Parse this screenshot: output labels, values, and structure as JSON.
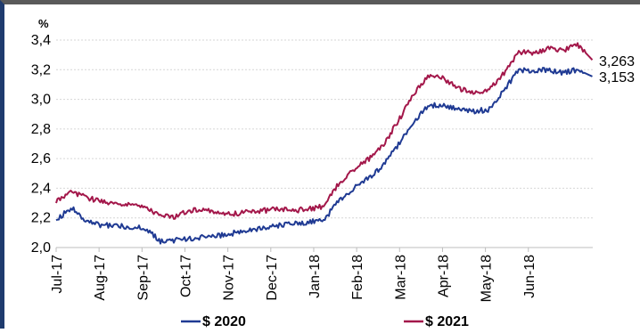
{
  "chart_data": {
    "type": "line",
    "unit_label": "%",
    "x": [
      "Jul-17",
      "Aug-17",
      "Sep-17",
      "Oct-17",
      "Nov-17",
      "Dec-17",
      "Jan-18",
      "Feb-18",
      "Mar-18",
      "Apr-18",
      "May-18",
      "Jun-18"
    ],
    "ylim": [
      2.0,
      3.4
    ],
    "yticks": [
      "2,0",
      "2,2",
      "2,4",
      "2,6",
      "2,8",
      "3,0",
      "3,2",
      "3,4"
    ],
    "grid": true,
    "legend_position": "bottom",
    "series": [
      {
        "name": "$ 2020",
        "color": "#1f3a93",
        "end_label": "3,153",
        "points": [
          [
            "Jul-17",
            2.18
          ],
          [
            "Jul-17 mid",
            2.27
          ],
          [
            "Jul-17 late",
            2.18
          ],
          [
            "Aug-17",
            2.15
          ],
          [
            "Aug-17 mid",
            2.15
          ],
          [
            "Aug-17 late",
            2.14
          ],
          [
            "Sep-17",
            2.13
          ],
          [
            "Sep-17 mid",
            2.04
          ],
          [
            "Sep-17 late",
            2.05
          ],
          [
            "Oct-17",
            2.06
          ],
          [
            "Oct-17 mid",
            2.07
          ],
          [
            "Oct-17 late",
            2.08
          ],
          [
            "Nov-17",
            2.1
          ],
          [
            "Nov-17 mid",
            2.12
          ],
          [
            "Nov-17 late",
            2.13
          ],
          [
            "Dec-17",
            2.15
          ],
          [
            "Dec-17 mid",
            2.16
          ],
          [
            "Dec-17 late",
            2.17
          ],
          [
            "Jan-18",
            2.19
          ],
          [
            "Jan-18 mid",
            2.32
          ],
          [
            "Jan-18 late",
            2.4
          ],
          [
            "Feb-18",
            2.47
          ],
          [
            "Feb-18 mid",
            2.56
          ],
          [
            "Feb-18 late",
            2.7
          ],
          [
            "Mar-18",
            2.85
          ],
          [
            "Mar-18 mid",
            2.96
          ],
          [
            "Mar-18 late",
            2.96
          ],
          [
            "Apr-18",
            2.93
          ],
          [
            "Apr-18 mid",
            2.92
          ],
          [
            "Apr-18 late",
            2.93
          ],
          [
            "May-18",
            3.05
          ],
          [
            "May-18 mid",
            3.2
          ],
          [
            "May-18 late",
            3.19
          ],
          [
            "Jun-18",
            3.2
          ],
          [
            "Jun-18 mid",
            3.18
          ],
          [
            "Jun-18 late",
            3.2
          ],
          [
            "end",
            3.153
          ]
        ]
      },
      {
        "name": "$ 2021",
        "color": "#a3174a",
        "end_label": "3,263",
        "points": [
          [
            "Jul-17",
            2.31
          ],
          [
            "Jul-17 mid",
            2.37
          ],
          [
            "Jul-17 late",
            2.34
          ],
          [
            "Aug-17",
            2.31
          ],
          [
            "Aug-17 mid",
            2.3
          ],
          [
            "Aug-17 late",
            2.29
          ],
          [
            "Sep-17",
            2.27
          ],
          [
            "Sep-17 mid",
            2.21
          ],
          [
            "Sep-17 late",
            2.21
          ],
          [
            "Oct-17",
            2.25
          ],
          [
            "Oct-17 mid",
            2.25
          ],
          [
            "Oct-17 late",
            2.23
          ],
          [
            "Nov-17",
            2.23
          ],
          [
            "Nov-17 mid",
            2.24
          ],
          [
            "Nov-17 late",
            2.25
          ],
          [
            "Dec-17",
            2.26
          ],
          [
            "Dec-17 mid",
            2.25
          ],
          [
            "Dec-17 late",
            2.26
          ],
          [
            "Jan-18",
            2.28
          ],
          [
            "Jan-18 mid",
            2.44
          ],
          [
            "Jan-18 late",
            2.53
          ],
          [
            "Feb-18",
            2.6
          ],
          [
            "Feb-18 mid",
            2.7
          ],
          [
            "Feb-18 late",
            2.86
          ],
          [
            "Mar-18",
            3.04
          ],
          [
            "Mar-18 mid",
            3.16
          ],
          [
            "Mar-18 late",
            3.14
          ],
          [
            "Apr-18",
            3.07
          ],
          [
            "Apr-18 mid",
            3.05
          ],
          [
            "Apr-18 late",
            3.06
          ],
          [
            "May-18",
            3.17
          ],
          [
            "May-18 mid",
            3.32
          ],
          [
            "May-18 late",
            3.31
          ],
          [
            "Jun-18",
            3.34
          ],
          [
            "Jun-18 mid",
            3.33
          ],
          [
            "Jun-18 late",
            3.37
          ],
          [
            "end",
            3.263
          ]
        ]
      }
    ]
  }
}
